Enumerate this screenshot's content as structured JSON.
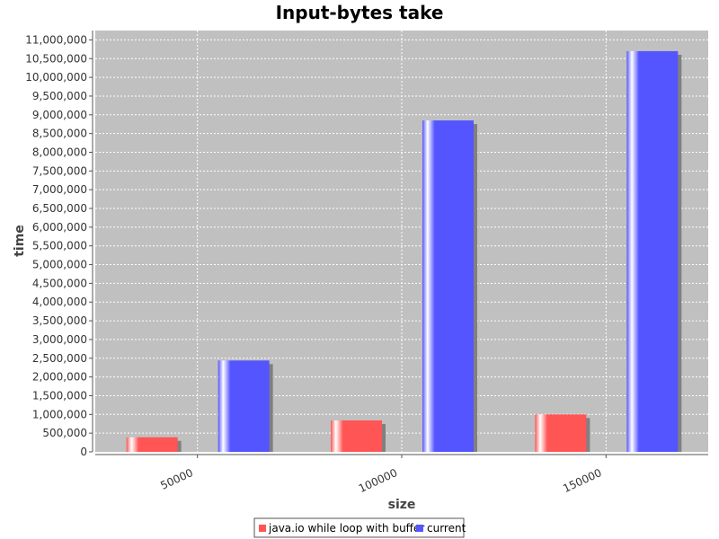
{
  "chart_data": {
    "type": "bar",
    "title": "Input-bytes take",
    "xlabel": "size",
    "ylabel": "time",
    "categories": [
      "50000",
      "100000",
      "150000"
    ],
    "series": [
      {
        "name": "java.io while loop with buffer",
        "values": [
          390000,
          840000,
          1000000
        ],
        "color": "#ff5555"
      },
      {
        "name": "current",
        "values": [
          2440000,
          8850000,
          10700000
        ],
        "color": "#5555ff"
      }
    ],
    "ylim": [
      0,
      11250000
    ],
    "yticks": [
      0,
      500000,
      1000000,
      1500000,
      2000000,
      2500000,
      3000000,
      3500000,
      4000000,
      4500000,
      5000000,
      5500000,
      6000000,
      6500000,
      7000000,
      7500000,
      8000000,
      8500000,
      9000000,
      9500000,
      10000000,
      10500000,
      11000000
    ],
    "ytick_labels": [
      "0",
      "500,000",
      "1,000,000",
      "1,500,000",
      "2,000,000",
      "2,500,000",
      "3,000,000",
      "3,500,000",
      "4,000,000",
      "4,500,000",
      "5,000,000",
      "5,500,000",
      "6,000,000",
      "6,500,000",
      "7,000,000",
      "7,500,000",
      "8,000,000",
      "8,500,000",
      "9,000,000",
      "9,500,000",
      "10,000,000",
      "10,500,000",
      "11,000,000"
    ],
    "grid": true,
    "legend_position": "bottom",
    "plot_background": "#c0c0c0"
  }
}
